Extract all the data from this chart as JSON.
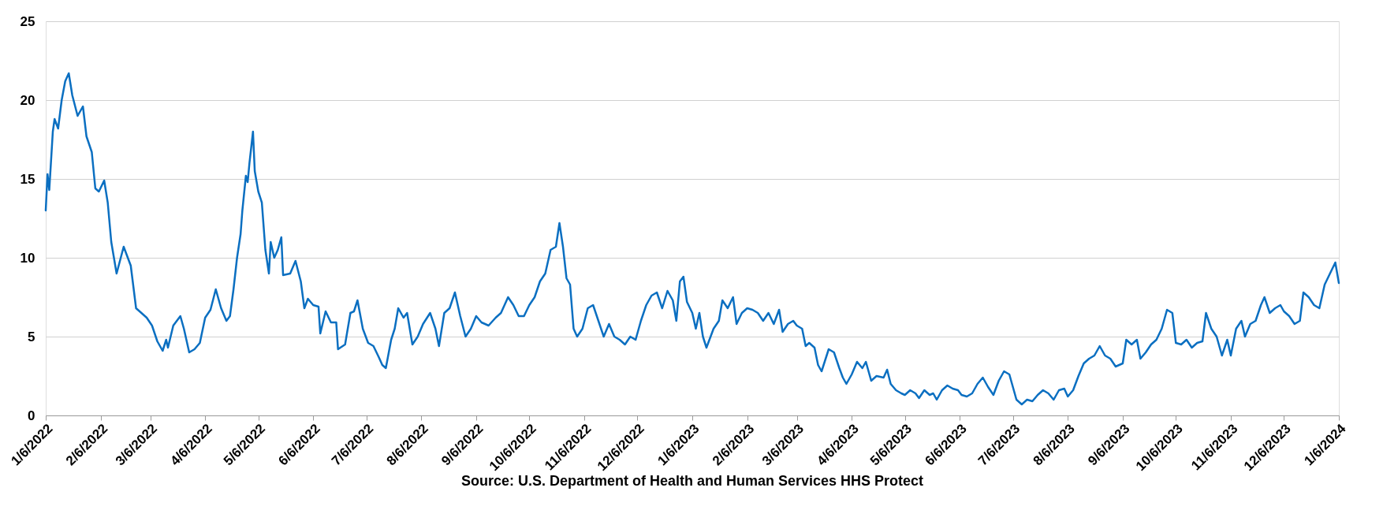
{
  "chart_data": {
    "type": "line",
    "x": [
      "2022-01-06",
      "2022-01-07",
      "2022-01-08",
      "2022-01-10",
      "2022-01-11",
      "2022-01-13",
      "2022-01-15",
      "2022-01-17",
      "2022-01-19",
      "2022-01-21",
      "2022-01-24",
      "2022-01-27",
      "2022-01-29",
      "2022-02-01",
      "2022-02-03",
      "2022-02-05",
      "2022-02-08",
      "2022-02-10",
      "2022-02-12",
      "2022-02-15",
      "2022-02-19",
      "2022-02-23",
      "2022-02-26",
      "2022-03-01",
      "2022-03-04",
      "2022-03-07",
      "2022-03-10",
      "2022-03-13",
      "2022-03-15",
      "2022-03-16",
      "2022-03-19",
      "2022-03-23",
      "2022-03-25",
      "2022-03-28",
      "2022-03-31",
      "2022-04-03",
      "2022-04-06",
      "2022-04-09",
      "2022-04-12",
      "2022-04-15",
      "2022-04-18",
      "2022-04-20",
      "2022-04-22",
      "2022-04-24",
      "2022-04-26",
      "2022-04-27",
      "2022-04-29",
      "2022-04-30",
      "2022-05-01",
      "2022-05-03",
      "2022-05-04",
      "2022-05-06",
      "2022-05-08",
      "2022-05-10",
      "2022-05-12",
      "2022-05-13",
      "2022-05-15",
      "2022-05-17",
      "2022-05-19",
      "2022-05-20",
      "2022-05-24",
      "2022-05-27",
      "2022-05-30",
      "2022-06-01",
      "2022-06-03",
      "2022-06-06",
      "2022-06-09",
      "2022-06-10",
      "2022-06-13",
      "2022-06-16",
      "2022-06-19",
      "2022-06-20",
      "2022-06-24",
      "2022-06-27",
      "2022-06-29",
      "2022-07-01",
      "2022-07-04",
      "2022-07-07",
      "2022-07-10",
      "2022-07-13",
      "2022-07-15",
      "2022-07-17",
      "2022-07-20",
      "2022-07-22",
      "2022-07-24",
      "2022-07-27",
      "2022-07-29",
      "2022-08-01",
      "2022-08-04",
      "2022-08-07",
      "2022-08-11",
      "2022-08-14",
      "2022-08-16",
      "2022-08-19",
      "2022-08-22",
      "2022-08-25",
      "2022-08-28",
      "2022-08-31",
      "2022-09-03",
      "2022-09-06",
      "2022-09-09",
      "2022-09-13",
      "2022-09-17",
      "2022-09-20",
      "2022-09-24",
      "2022-09-27",
      "2022-09-30",
      "2022-10-03",
      "2022-10-06",
      "2022-10-09",
      "2022-10-12",
      "2022-10-15",
      "2022-10-18",
      "2022-10-21",
      "2022-10-23",
      "2022-10-25",
      "2022-10-27",
      "2022-10-29",
      "2022-10-31",
      "2022-11-02",
      "2022-11-05",
      "2022-11-08",
      "2022-11-11",
      "2022-11-14",
      "2022-11-17",
      "2022-11-20",
      "2022-11-23",
      "2022-11-26",
      "2022-11-29",
      "2022-12-02",
      "2022-12-05",
      "2022-12-08",
      "2022-12-11",
      "2022-12-14",
      "2022-12-17",
      "2022-12-20",
      "2022-12-23",
      "2022-12-26",
      "2022-12-28",
      "2022-12-30",
      "2023-01-01",
      "2023-01-03",
      "2023-01-06",
      "2023-01-08",
      "2023-01-10",
      "2023-01-12",
      "2023-01-14",
      "2023-01-18",
      "2023-01-21",
      "2023-01-23",
      "2023-01-26",
      "2023-01-29",
      "2023-01-31",
      "2023-02-03",
      "2023-02-06",
      "2023-02-09",
      "2023-02-12",
      "2023-02-15",
      "2023-02-18",
      "2023-02-21",
      "2023-02-24",
      "2023-02-26",
      "2023-03-01",
      "2023-03-04",
      "2023-03-06",
      "2023-03-09",
      "2023-03-11",
      "2023-03-13",
      "2023-03-16",
      "2023-03-18",
      "2023-03-20",
      "2023-03-22",
      "2023-03-24",
      "2023-03-27",
      "2023-03-30",
      "2023-04-01",
      "2023-04-03",
      "2023-04-06",
      "2023-04-09",
      "2023-04-12",
      "2023-04-14",
      "2023-04-17",
      "2023-04-20",
      "2023-04-24",
      "2023-04-26",
      "2023-04-28",
      "2023-05-01",
      "2023-05-04",
      "2023-05-06",
      "2023-05-09",
      "2023-05-12",
      "2023-05-14",
      "2023-05-17",
      "2023-05-20",
      "2023-05-22",
      "2023-05-24",
      "2023-05-27",
      "2023-05-30",
      "2023-06-02",
      "2023-06-05",
      "2023-06-07",
      "2023-06-10",
      "2023-06-13",
      "2023-06-16",
      "2023-06-19",
      "2023-06-22",
      "2023-06-25",
      "2023-06-28",
      "2023-07-01",
      "2023-07-04",
      "2023-07-06",
      "2023-07-08",
      "2023-07-11",
      "2023-07-14",
      "2023-07-17",
      "2023-07-20",
      "2023-07-23",
      "2023-07-26",
      "2023-07-29",
      "2023-08-01",
      "2023-08-04",
      "2023-08-06",
      "2023-08-09",
      "2023-08-12",
      "2023-08-15",
      "2023-08-18",
      "2023-08-21",
      "2023-08-24",
      "2023-08-27",
      "2023-08-30",
      "2023-09-02",
      "2023-09-06",
      "2023-09-08",
      "2023-09-11",
      "2023-09-14",
      "2023-09-16",
      "2023-09-19",
      "2023-09-22",
      "2023-09-25",
      "2023-09-28",
      "2023-10-01",
      "2023-10-04",
      "2023-10-06",
      "2023-10-09",
      "2023-10-12",
      "2023-10-15",
      "2023-10-18",
      "2023-10-21",
      "2023-10-23",
      "2023-10-26",
      "2023-10-29",
      "2023-11-01",
      "2023-11-04",
      "2023-11-06",
      "2023-11-09",
      "2023-11-12",
      "2023-11-14",
      "2023-11-17",
      "2023-11-20",
      "2023-11-23",
      "2023-11-25",
      "2023-11-28",
      "2023-12-01",
      "2023-12-04",
      "2023-12-06",
      "2023-12-09",
      "2023-12-12",
      "2023-12-15",
      "2023-12-17",
      "2023-12-20",
      "2023-12-23",
      "2023-12-26",
      "2023-12-29",
      "2024-01-01",
      "2024-01-04",
      "2024-01-06"
    ],
    "series": [
      {
        "color": "#0b6fc1",
        "values": [
          13.0,
          15.3,
          14.3,
          18.0,
          18.8,
          18.2,
          20.0,
          21.2,
          21.7,
          20.3,
          19.0,
          19.6,
          17.7,
          16.7,
          14.4,
          14.2,
          14.9,
          13.5,
          11.0,
          9.0,
          10.7,
          9.5,
          6.8,
          6.5,
          6.2,
          5.7,
          4.7,
          4.1,
          4.8,
          4.3,
          5.7,
          6.3,
          5.5,
          4.0,
          4.2,
          4.6,
          6.2,
          6.7,
          8.0,
          6.8,
          6.0,
          6.3,
          8.0,
          10.0,
          11.5,
          13.0,
          15.2,
          14.8,
          16.0,
          18.0,
          15.5,
          14.2,
          13.5,
          10.5,
          9.0,
          11.0,
          10.0,
          10.5,
          11.3,
          8.9,
          9.0,
          9.8,
          8.5,
          6.8,
          7.4,
          7.0,
          6.9,
          5.2,
          6.6,
          5.9,
          5.9,
          4.2,
          4.5,
          6.5,
          6.6,
          7.3,
          5.5,
          4.6,
          4.4,
          3.7,
          3.2,
          3.0,
          4.8,
          5.5,
          6.8,
          6.2,
          6.5,
          4.5,
          5.0,
          5.8,
          6.5,
          5.5,
          4.4,
          6.5,
          6.8,
          7.8,
          6.3,
          5.0,
          5.5,
          6.3,
          5.9,
          5.7,
          6.2,
          6.5,
          7.5,
          7.0,
          6.3,
          6.3,
          7.0,
          7.5,
          8.5,
          9.0,
          10.5,
          10.7,
          12.2,
          10.7,
          8.7,
          8.3,
          5.5,
          5.0,
          5.5,
          6.8,
          7.0,
          6.0,
          5.0,
          5.8,
          5.0,
          4.8,
          4.5,
          5.0,
          4.8,
          6.0,
          7.0,
          7.6,
          7.8,
          6.8,
          7.9,
          7.3,
          6.0,
          8.5,
          8.8,
          7.2,
          6.5,
          5.5,
          6.5,
          5.0,
          4.3,
          5.5,
          6.0,
          7.3,
          6.8,
          7.5,
          5.8,
          6.5,
          6.8,
          6.7,
          6.5,
          6.0,
          6.5,
          5.8,
          6.7,
          5.3,
          5.8,
          6.0,
          5.7,
          5.5,
          4.4,
          4.6,
          4.3,
          3.2,
          2.8,
          3.5,
          4.2,
          4.0,
          3.0,
          2.4,
          2.0,
          2.6,
          3.4,
          3.0,
          3.4,
          2.2,
          2.5,
          2.4,
          2.9,
          2.0,
          1.6,
          1.4,
          1.3,
          1.6,
          1.4,
          1.1,
          1.6,
          1.3,
          1.4,
          1.0,
          1.6,
          1.9,
          1.7,
          1.6,
          1.3,
          1.2,
          1.4,
          2.0,
          2.4,
          1.8,
          1.3,
          2.2,
          2.8,
          2.6,
          1.8,
          1.0,
          0.7,
          1.0,
          0.9,
          1.3,
          1.6,
          1.4,
          1.0,
          1.6,
          1.7,
          1.2,
          1.6,
          2.5,
          3.3,
          3.6,
          3.8,
          4.4,
          3.8,
          3.6,
          3.1,
          3.3,
          4.8,
          4.5,
          4.8,
          3.6,
          4.0,
          4.5,
          4.8,
          5.5,
          6.7,
          6.5,
          4.6,
          4.5,
          4.8,
          4.3,
          4.6,
          4.7,
          6.5,
          5.5,
          5.0,
          3.8,
          4.8,
          3.8,
          5.5,
          6.0,
          5.0,
          5.8,
          6.0,
          7.0,
          7.5,
          6.5,
          6.8,
          7.0,
          6.6,
          6.3,
          5.8,
          6.0,
          7.8,
          7.5,
          7.0,
          6.8,
          8.3,
          9.0,
          9.7,
          8.4
        ]
      }
    ],
    "ylim": [
      0,
      25
    ],
    "yticks": [
      0,
      5,
      10,
      15,
      20,
      25
    ],
    "xlim": [
      "2022-01-06",
      "2024-01-06"
    ],
    "xticks": [
      {
        "value": "2022-01-06",
        "label": "1/6/2022"
      },
      {
        "value": "2022-02-06",
        "label": "2/6/2022"
      },
      {
        "value": "2022-03-06",
        "label": "3/6/2022"
      },
      {
        "value": "2022-04-06",
        "label": "4/6/2022"
      },
      {
        "value": "2022-05-06",
        "label": "5/6/2022"
      },
      {
        "value": "2022-06-06",
        "label": "6/6/2022"
      },
      {
        "value": "2022-07-06",
        "label": "7/6/2022"
      },
      {
        "value": "2022-08-06",
        "label": "8/6/2022"
      },
      {
        "value": "2022-09-06",
        "label": "9/6/2022"
      },
      {
        "value": "2022-10-06",
        "label": "10/6/2022"
      },
      {
        "value": "2022-11-06",
        "label": "11/6/2022"
      },
      {
        "value": "2022-12-06",
        "label": "12/6/2022"
      },
      {
        "value": "2023-01-06",
        "label": "1/6/2023"
      },
      {
        "value": "2023-02-06",
        "label": "2/6/2023"
      },
      {
        "value": "2023-03-06",
        "label": "3/6/2023"
      },
      {
        "value": "2023-04-06",
        "label": "4/6/2023"
      },
      {
        "value": "2023-05-06",
        "label": "5/6/2023"
      },
      {
        "value": "2023-06-06",
        "label": "6/6/2023"
      },
      {
        "value": "2023-07-06",
        "label": "7/6/2023"
      },
      {
        "value": "2023-08-06",
        "label": "8/6/2023"
      },
      {
        "value": "2023-09-06",
        "label": "9/6/2023"
      },
      {
        "value": "2023-10-06",
        "label": "10/6/2023"
      },
      {
        "value": "2023-11-06",
        "label": "11/6/2023"
      },
      {
        "value": "2023-12-06",
        "label": "12/6/2023"
      },
      {
        "value": "2024-01-06",
        "label": "1/6/2024"
      }
    ],
    "grid": "y",
    "annotations": [
      "Source: U.S. Department of Health and Human Services HHS Protect"
    ]
  }
}
